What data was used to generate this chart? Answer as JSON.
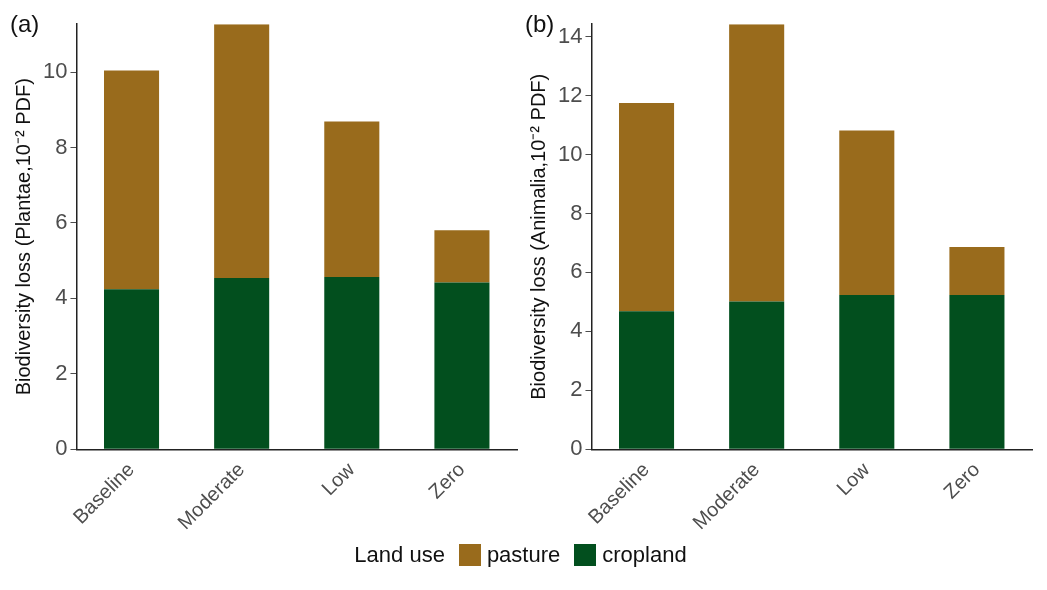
{
  "chart_data": [
    {
      "type": "bar",
      "stacked": true,
      "annotations": [
        "(a)"
      ],
      "ylabel": "Biodiversity loss (Plantae,10⁻² PDF)",
      "categories": [
        "Baseline",
        "Moderate",
        "Low",
        "Zero"
      ],
      "ylim": [
        0,
        11.27
      ],
      "yticks": [
        0,
        2,
        4,
        6,
        8,
        10
      ],
      "grid": false,
      "legend": "bottom",
      "legend_title": "Land use",
      "series": [
        {
          "name": "cropland",
          "color": "#024f1e",
          "values": [
            4.24,
            4.54,
            4.57,
            4.42
          ]
        },
        {
          "name": "pasture",
          "color": "#996b1c",
          "values": [
            5.8,
            6.73,
            4.12,
            1.39
          ]
        }
      ]
    },
    {
      "type": "bar",
      "stacked": true,
      "annotations": [
        "(b)"
      ],
      "ylabel": "Biodiversity loss (Animalia,10⁻² PDF)",
      "categories": [
        "Baseline",
        "Moderate",
        "Low",
        "Zero"
      ],
      "ylim": [
        0,
        14.42
      ],
      "yticks": [
        0,
        2,
        4,
        6,
        8,
        10,
        12,
        14
      ],
      "grid": false,
      "series": [
        {
          "color": "#024f1e",
          "values": [
            4.68,
            5.01,
            5.23,
            5.23
          ]
        },
        {
          "color": "#996b1c",
          "values": [
            7.07,
            9.41,
            5.58,
            1.63
          ]
        }
      ]
    }
  ]
}
